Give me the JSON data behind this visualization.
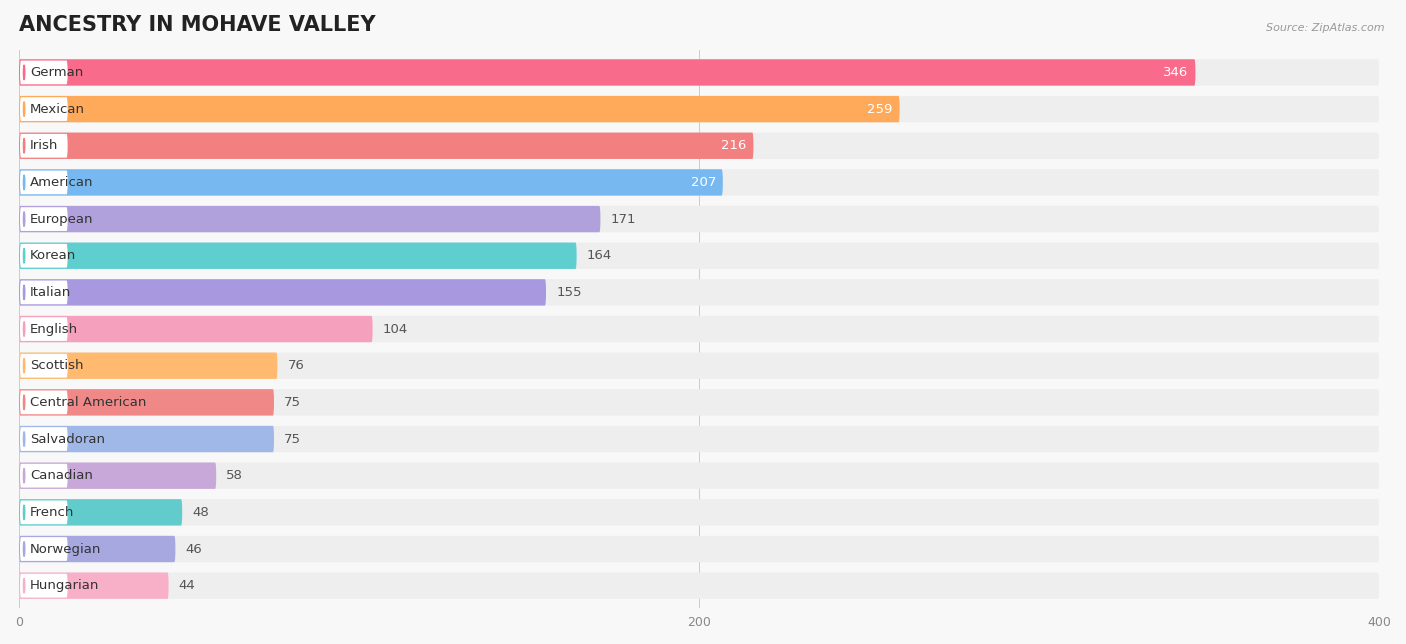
{
  "title": "ANCESTRY IN MOHAVE VALLEY",
  "source": "Source: ZipAtlas.com",
  "categories": [
    "German",
    "Mexican",
    "Irish",
    "American",
    "European",
    "Korean",
    "Italian",
    "English",
    "Scottish",
    "Central American",
    "Salvadoran",
    "Canadian",
    "French",
    "Norwegian",
    "Hungarian"
  ],
  "values": [
    346,
    259,
    216,
    207,
    171,
    164,
    155,
    104,
    76,
    75,
    75,
    58,
    48,
    46,
    44
  ],
  "colors": [
    "#F96B8A",
    "#FFAA5A",
    "#F28080",
    "#78B8F0",
    "#B0A0DC",
    "#5ECECE",
    "#A898E0",
    "#F5A0BC",
    "#FFBA70",
    "#F08888",
    "#A0B8E8",
    "#C8A8D8",
    "#62CCCC",
    "#A8A8E0",
    "#F8B0C8"
  ],
  "bar_bg_color": "#EEEEEE",
  "background_color": "#F8F8F8",
  "row_alt_color": "#F2F2F2",
  "xlim": [
    0,
    400
  ],
  "xticks": [
    0,
    200,
    400
  ],
  "title_fontsize": 15,
  "label_fontsize": 9.5,
  "value_fontsize": 9.5,
  "data_max": 400
}
